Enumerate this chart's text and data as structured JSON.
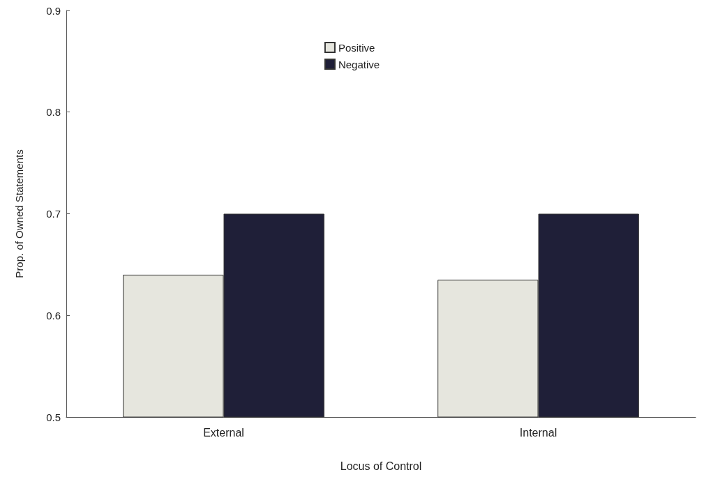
{
  "chart_data": {
    "type": "bar",
    "xlabel": "Locus of Control",
    "ylabel": "Prop. of Owned Statements",
    "categories": [
      "External",
      "Internal"
    ],
    "series": [
      {
        "name": "Positive",
        "color": "#e6e6de",
        "values": [
          0.64,
          0.635
        ]
      },
      {
        "name": "Negative",
        "color": "#1f1f38",
        "values": [
          0.7,
          0.7
        ]
      }
    ],
    "ylim": [
      0.5,
      0.9
    ],
    "yticks": [
      0.5,
      0.6,
      0.7,
      0.8,
      0.9
    ],
    "grid": false,
    "legend": "top"
  }
}
